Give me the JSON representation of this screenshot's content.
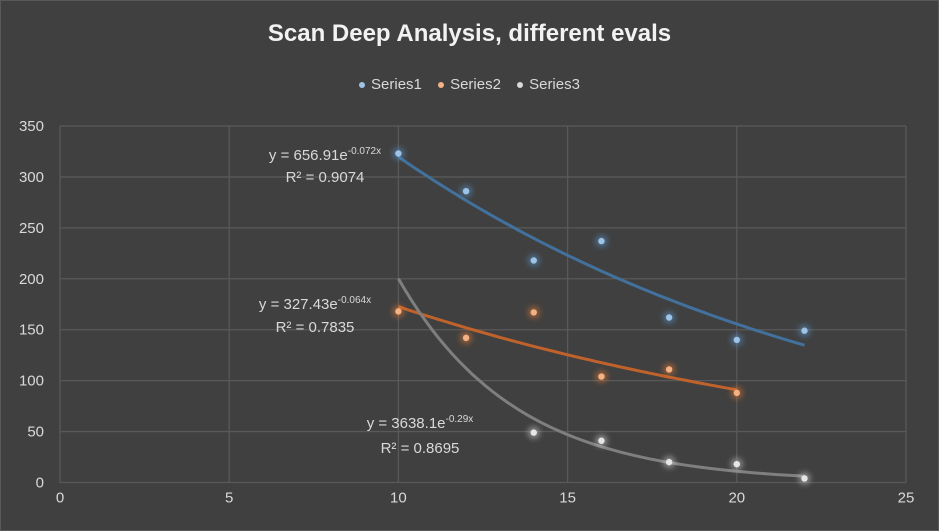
{
  "chart_data": {
    "type": "scatter",
    "title": "Scan Deep Analysis, different evals",
    "xlabel": "",
    "ylabel": "",
    "xlim": [
      0,
      25
    ],
    "ylim": [
      0,
      350
    ],
    "xticks": [
      0,
      5,
      10,
      15,
      20,
      25
    ],
    "yticks": [
      0,
      50,
      100,
      150,
      200,
      250,
      300,
      350
    ],
    "grid": true,
    "legend_position": "top",
    "series": [
      {
        "name": "Series1",
        "color": "#5b9bd5",
        "x": [
          10,
          12,
          14,
          16,
          18,
          20,
          22
        ],
        "y": [
          323,
          286,
          218,
          237,
          162,
          140,
          149
        ],
        "trendline": {
          "type": "exponential",
          "a": 656.91,
          "b": -0.072,
          "color": "#41719c",
          "equation": "y = 656.91e",
          "exponent": "-0.072x",
          "r2": "R² = 0.9074"
        }
      },
      {
        "name": "Series2",
        "color": "#ed7d31",
        "x": [
          10,
          12,
          14,
          16,
          18,
          20
        ],
        "y": [
          168,
          142,
          167,
          104,
          111,
          88
        ],
        "trendline": {
          "type": "exponential",
          "a": 327.43,
          "b": -0.064,
          "color": "#c0622b",
          "equation": "y = 327.43e",
          "exponent": "-0.064x",
          "r2": "R² = 0.7835"
        }
      },
      {
        "name": "Series3",
        "color": "#d9d9d9",
        "x": [
          14,
          16,
          18,
          20,
          22
        ],
        "y": [
          49,
          41,
          20,
          18,
          4
        ],
        "trendline": {
          "type": "exponential",
          "a": 3638.1,
          "b": -0.29,
          "color": "#7f7f7f",
          "equation": "y = 3638.1e",
          "exponent": "-0.29x",
          "r2": "R² = 0.8695"
        }
      }
    ]
  }
}
